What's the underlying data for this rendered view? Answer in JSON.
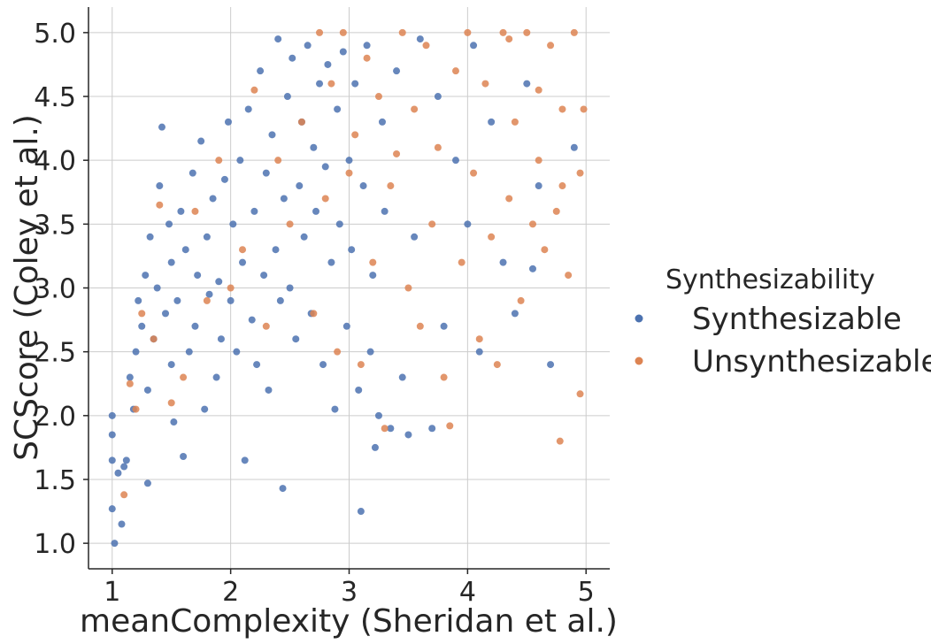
{
  "chart_data": {
    "type": "scatter",
    "title": "",
    "xlabel": "meanComplexity (Sheridan et al.)",
    "ylabel": "SCScore (Coley et al.)",
    "xlim": [
      0.8,
      5.2
    ],
    "ylim": [
      0.8,
      5.2
    ],
    "xticks": [
      "1",
      "2",
      "3",
      "4",
      "5"
    ],
    "yticks": [
      "1.0",
      "1.5",
      "2.0",
      "2.5",
      "3.0",
      "3.5",
      "4.0",
      "4.5",
      "5.0"
    ],
    "grid": true,
    "legend": {
      "title": "Synthesizability",
      "placement": "right"
    },
    "series": [
      {
        "name": "Synthesizable",
        "color": "#4c72b0",
        "points": [
          [
            1.0,
            2.0
          ],
          [
            1.0,
            1.85
          ],
          [
            1.0,
            1.65
          ],
          [
            1.0,
            1.27
          ],
          [
            1.02,
            1.0
          ],
          [
            1.05,
            1.55
          ],
          [
            1.08,
            1.15
          ],
          [
            1.1,
            1.6
          ],
          [
            1.12,
            1.65
          ],
          [
            1.15,
            2.3
          ],
          [
            1.18,
            2.05
          ],
          [
            1.2,
            2.5
          ],
          [
            1.22,
            2.9
          ],
          [
            1.25,
            2.7
          ],
          [
            1.28,
            3.1
          ],
          [
            1.3,
            2.2
          ],
          [
            1.3,
            1.47
          ],
          [
            1.32,
            3.4
          ],
          [
            1.35,
            2.6
          ],
          [
            1.38,
            3.0
          ],
          [
            1.4,
            3.8
          ],
          [
            1.42,
            4.26
          ],
          [
            1.45,
            2.8
          ],
          [
            1.48,
            3.5
          ],
          [
            1.5,
            2.4
          ],
          [
            1.5,
            3.2
          ],
          [
            1.52,
            1.95
          ],
          [
            1.55,
            2.9
          ],
          [
            1.58,
            3.6
          ],
          [
            1.6,
            1.68
          ],
          [
            1.62,
            3.3
          ],
          [
            1.65,
            2.5
          ],
          [
            1.68,
            3.9
          ],
          [
            1.7,
            2.7
          ],
          [
            1.72,
            3.1
          ],
          [
            1.75,
            4.15
          ],
          [
            1.78,
            2.05
          ],
          [
            1.8,
            3.4
          ],
          [
            1.82,
            2.95
          ],
          [
            1.85,
            3.7
          ],
          [
            1.88,
            2.3
          ],
          [
            1.9,
            3.05
          ],
          [
            1.92,
            2.6
          ],
          [
            1.95,
            3.85
          ],
          [
            1.98,
            4.3
          ],
          [
            2.0,
            2.9
          ],
          [
            2.02,
            3.5
          ],
          [
            2.05,
            2.5
          ],
          [
            2.08,
            4.0
          ],
          [
            2.1,
            3.2
          ],
          [
            2.12,
            1.65
          ],
          [
            2.15,
            4.4
          ],
          [
            2.18,
            2.75
          ],
          [
            2.2,
            3.6
          ],
          [
            2.22,
            2.4
          ],
          [
            2.25,
            4.7
          ],
          [
            2.28,
            3.1
          ],
          [
            2.3,
            3.9
          ],
          [
            2.32,
            2.2
          ],
          [
            2.35,
            4.2
          ],
          [
            2.38,
            3.3
          ],
          [
            2.4,
            4.95
          ],
          [
            2.42,
            2.9
          ],
          [
            2.44,
            1.43
          ],
          [
            2.45,
            3.7
          ],
          [
            2.48,
            4.5
          ],
          [
            2.5,
            3.0
          ],
          [
            2.52,
            4.8
          ],
          [
            2.55,
            2.6
          ],
          [
            2.58,
            3.8
          ],
          [
            2.6,
            4.3
          ],
          [
            2.62,
            3.4
          ],
          [
            2.65,
            4.9
          ],
          [
            2.68,
            2.8
          ],
          [
            2.7,
            4.1
          ],
          [
            2.72,
            3.6
          ],
          [
            2.75,
            4.6
          ],
          [
            2.78,
            2.4
          ],
          [
            2.8,
            3.95
          ],
          [
            2.82,
            4.75
          ],
          [
            2.85,
            3.2
          ],
          [
            2.88,
            2.05
          ],
          [
            2.9,
            4.4
          ],
          [
            2.92,
            3.5
          ],
          [
            2.95,
            4.85
          ],
          [
            2.98,
            2.7
          ],
          [
            3.0,
            4.0
          ],
          [
            3.02,
            3.3
          ],
          [
            3.05,
            4.6
          ],
          [
            3.08,
            2.2
          ],
          [
            3.1,
            1.25
          ],
          [
            3.12,
            3.8
          ],
          [
            3.15,
            4.9
          ],
          [
            3.18,
            2.5
          ],
          [
            3.2,
            3.1
          ],
          [
            3.22,
            1.75
          ],
          [
            3.25,
            2.0
          ],
          [
            3.28,
            4.3
          ],
          [
            3.3,
            3.6
          ],
          [
            3.35,
            1.9
          ],
          [
            3.4,
            4.7
          ],
          [
            3.45,
            2.3
          ],
          [
            3.5,
            1.85
          ],
          [
            3.55,
            3.4
          ],
          [
            3.6,
            4.95
          ],
          [
            3.7,
            1.9
          ],
          [
            3.75,
            4.5
          ],
          [
            3.8,
            2.7
          ],
          [
            3.9,
            4.0
          ],
          [
            4.0,
            3.5
          ],
          [
            4.05,
            4.9
          ],
          [
            4.1,
            2.5
          ],
          [
            4.2,
            4.3
          ],
          [
            4.3,
            3.2
          ],
          [
            4.4,
            2.8
          ],
          [
            4.5,
            4.6
          ],
          [
            4.55,
            3.15
          ],
          [
            4.6,
            3.8
          ],
          [
            4.7,
            2.4
          ],
          [
            4.9,
            4.1
          ]
        ]
      },
      {
        "name": "Unsynthesizable",
        "color": "#dd8452",
        "points": [
          [
            1.1,
            1.38
          ],
          [
            1.15,
            2.25
          ],
          [
            1.2,
            2.05
          ],
          [
            1.25,
            2.8
          ],
          [
            1.35,
            2.6
          ],
          [
            1.4,
            3.65
          ],
          [
            1.5,
            2.1
          ],
          [
            1.6,
            2.3
          ],
          [
            1.7,
            3.6
          ],
          [
            1.8,
            2.9
          ],
          [
            1.9,
            4.0
          ],
          [
            2.0,
            3.0
          ],
          [
            2.1,
            3.3
          ],
          [
            2.2,
            4.55
          ],
          [
            2.3,
            2.7
          ],
          [
            2.4,
            4.0
          ],
          [
            2.5,
            3.5
          ],
          [
            2.6,
            4.3
          ],
          [
            2.7,
            2.8
          ],
          [
            2.75,
            5.0
          ],
          [
            2.8,
            3.7
          ],
          [
            2.85,
            4.6
          ],
          [
            2.9,
            2.5
          ],
          [
            2.95,
            5.0
          ],
          [
            3.0,
            3.9
          ],
          [
            3.05,
            4.2
          ],
          [
            3.1,
            2.4
          ],
          [
            3.15,
            4.8
          ],
          [
            3.2,
            3.2
          ],
          [
            3.25,
            4.5
          ],
          [
            3.3,
            1.9
          ],
          [
            3.35,
            3.8
          ],
          [
            3.4,
            4.05
          ],
          [
            3.45,
            5.0
          ],
          [
            3.5,
            3.0
          ],
          [
            3.55,
            4.4
          ],
          [
            3.6,
            2.7
          ],
          [
            3.65,
            4.9
          ],
          [
            3.7,
            3.5
          ],
          [
            3.75,
            4.1
          ],
          [
            3.8,
            2.3
          ],
          [
            3.85,
            1.92
          ],
          [
            3.9,
            4.7
          ],
          [
            3.95,
            3.2
          ],
          [
            4.0,
            5.0
          ],
          [
            4.05,
            3.9
          ],
          [
            4.1,
            2.6
          ],
          [
            4.15,
            4.6
          ],
          [
            4.2,
            3.4
          ],
          [
            4.25,
            2.4
          ],
          [
            4.3,
            5.0
          ],
          [
            4.35,
            3.7
          ],
          [
            4.4,
            4.3
          ],
          [
            4.45,
            2.9
          ],
          [
            4.5,
            5.0
          ],
          [
            4.55,
            3.5
          ],
          [
            4.6,
            4.0
          ],
          [
            4.65,
            3.3
          ],
          [
            4.7,
            4.9
          ],
          [
            4.75,
            3.6
          ],
          [
            4.78,
            1.8
          ],
          [
            4.8,
            4.4
          ],
          [
            4.85,
            3.1
          ],
          [
            4.9,
            5.0
          ],
          [
            4.95,
            2.17
          ],
          [
            4.95,
            3.9
          ],
          [
            4.98,
            4.4
          ],
          [
            4.35,
            4.95
          ],
          [
            4.6,
            4.55
          ],
          [
            4.8,
            3.8
          ]
        ]
      }
    ]
  }
}
